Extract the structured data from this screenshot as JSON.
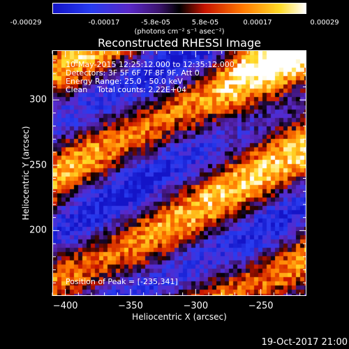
{
  "chart_data": {
    "type": "heatmap",
    "title": "Reconstructed RHESSI Image",
    "xlabel": "Heliocentric X (arcsec)",
    "ylabel": "Heliocentric Y (arcsec)",
    "xlim": [
      -410,
      -215
    ],
    "ylim": [
      150,
      338
    ],
    "x_ticks": [
      -400,
      -350,
      -300,
      -250
    ],
    "y_ticks": [
      200,
      250,
      300
    ],
    "colorbar": {
      "label": "(photons cm⁻² s⁻¹ asec⁻²)",
      "min": -0.00029,
      "max": 0.00029,
      "tick_labels": [
        "-0.00029",
        "-0.00017",
        "-5.8e-05",
        "5.8e-05",
        "0.00017",
        "0.00029"
      ],
      "tick_values": [
        -0.00029,
        -0.00017,
        -5.8e-05,
        5.8e-05,
        0.00017,
        0.00029
      ]
    },
    "annotations": {
      "time_range": "10-May-2015 12:25:12.000 to 12:35:12.000",
      "detectors": "Detectors: 3F 5F 6F 7F 8F 9F, Att 0",
      "energy": "Energy Range: 25.0 - 50.0 keV",
      "method": "Clean    Total counts: 2.22E+04",
      "peak": "Position of Peak = [-235,341]"
    },
    "peak_position": [
      -235,
      341
    ]
  },
  "footer": {
    "date": "19-Oct-2017 21:00"
  }
}
